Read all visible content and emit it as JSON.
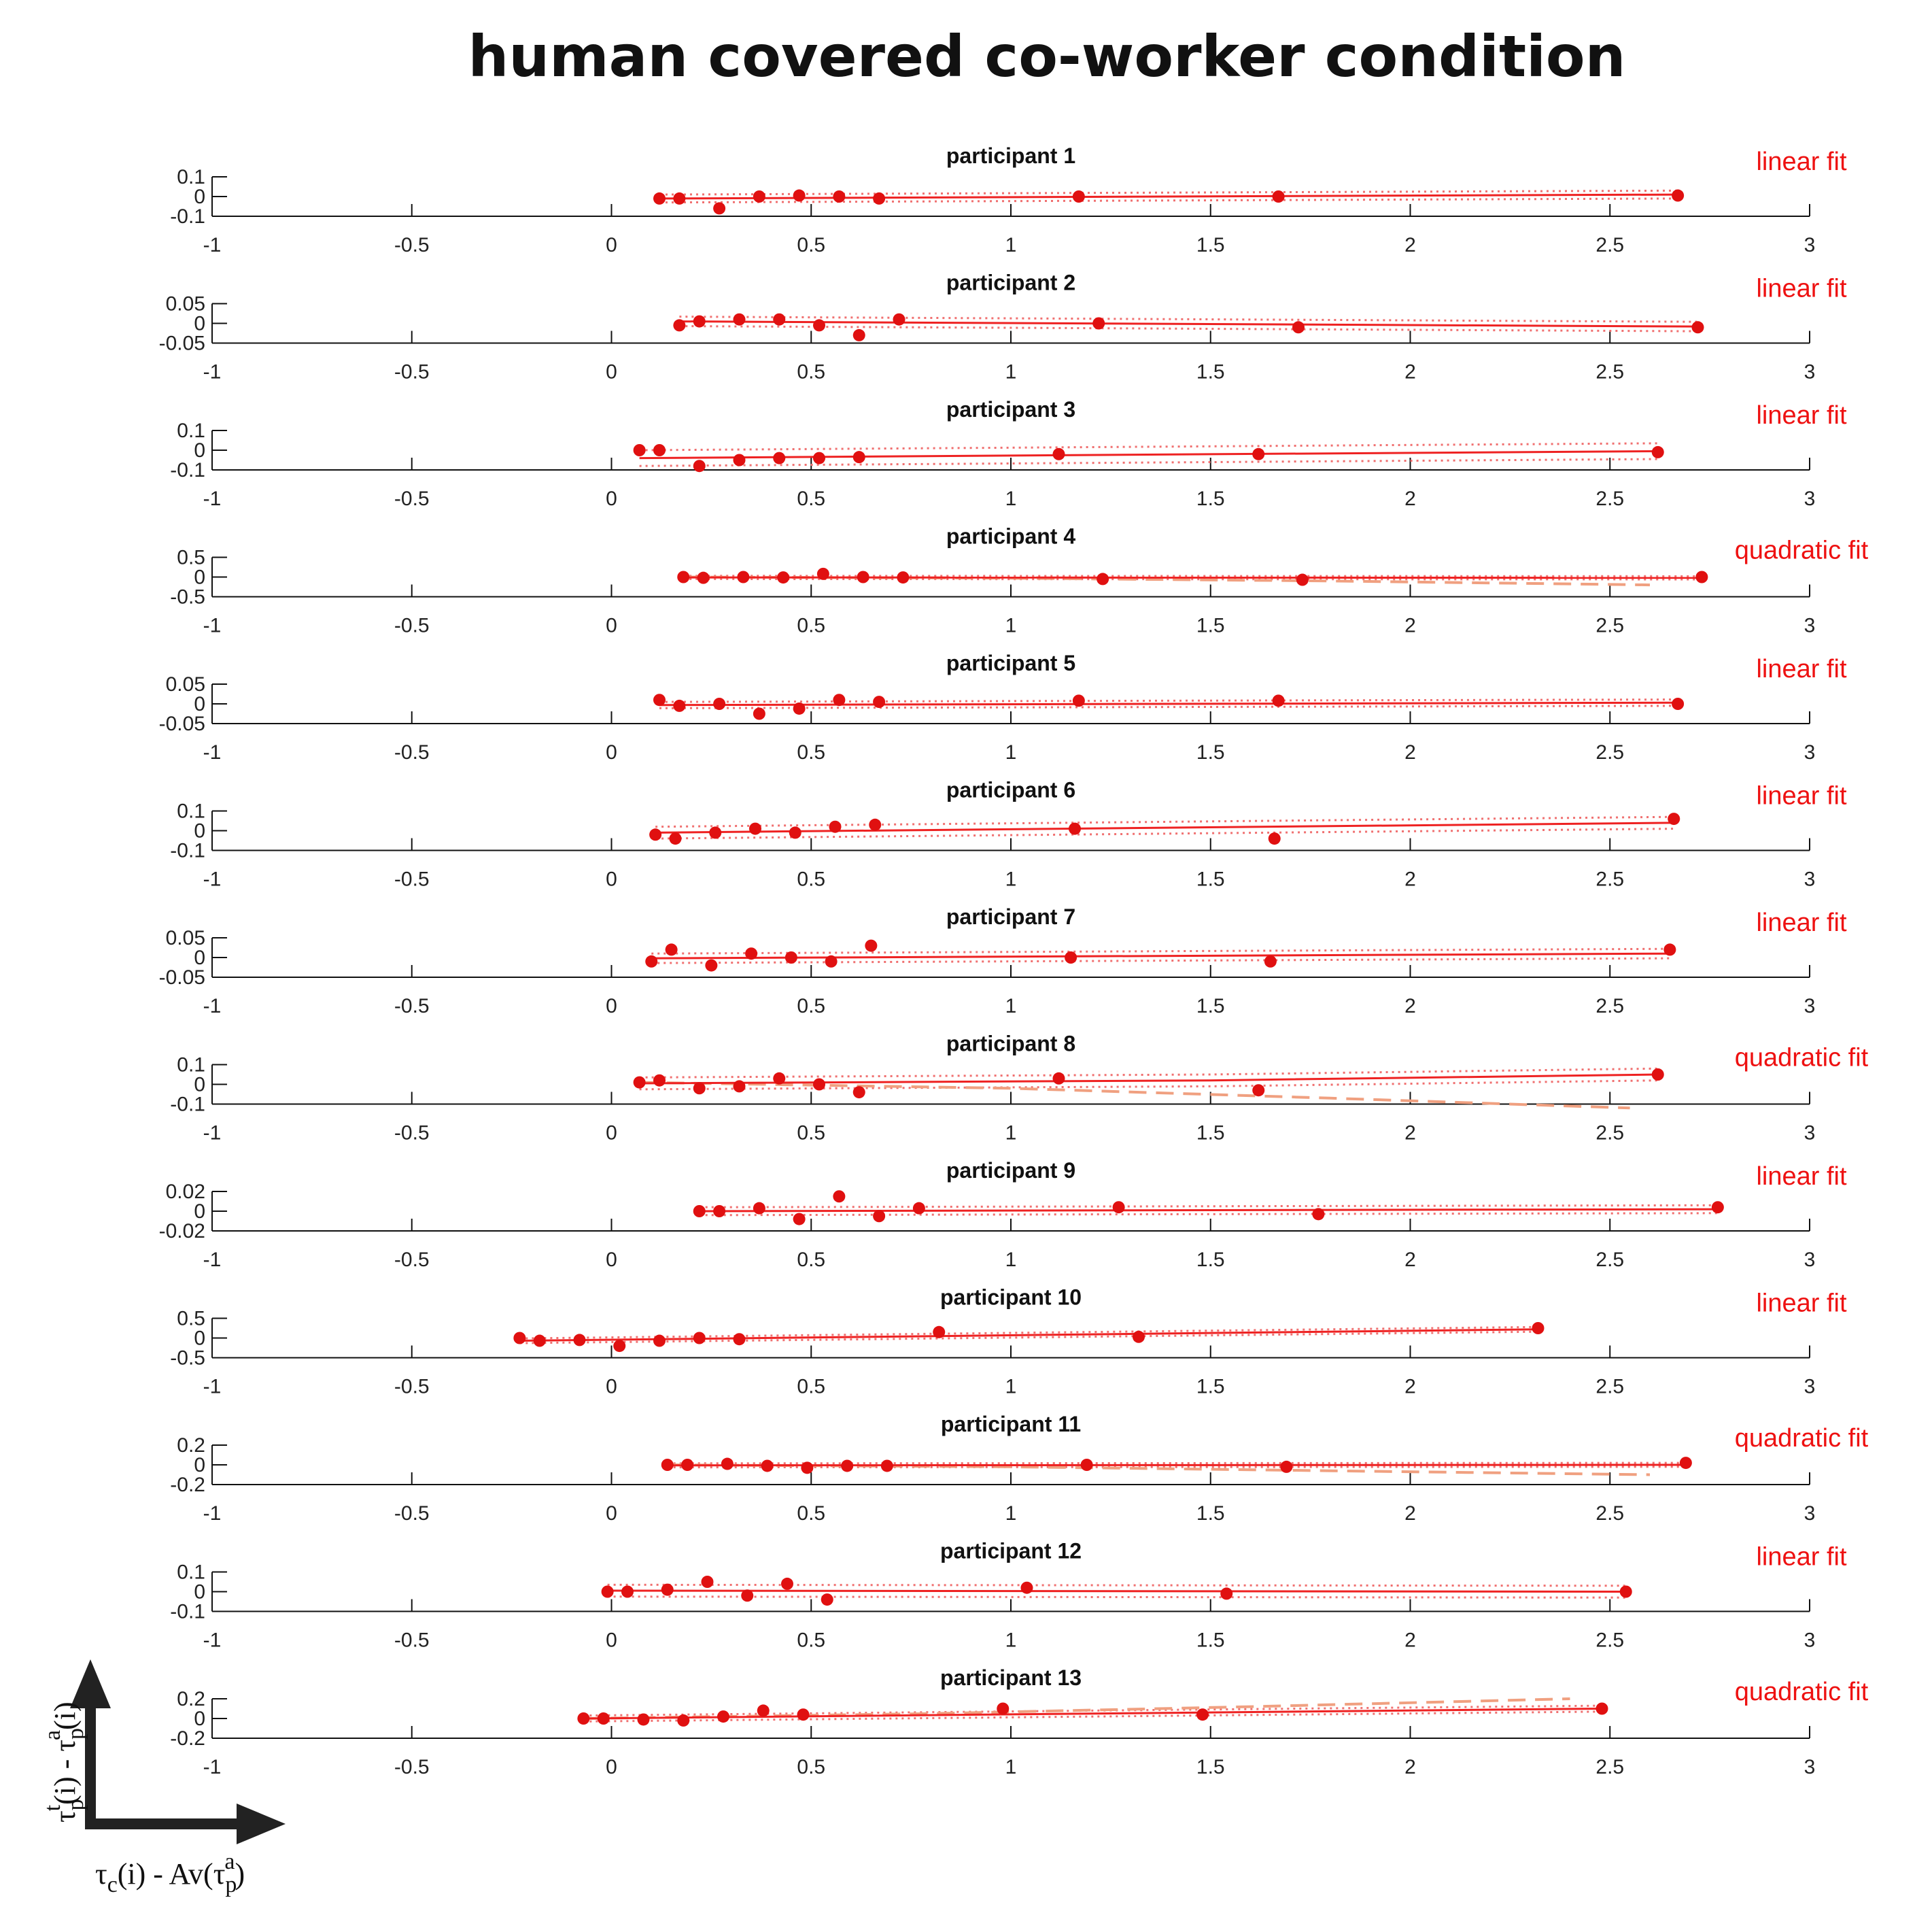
{
  "title": "human covered co-worker condition",
  "x_axis_label": "τc(i) - Av(τpa)",
  "y_axis_label": "τpt(i) - τpa(i)",
  "x_axis_label_parts": {
    "base1": "τ",
    "sub1": "c",
    "mid": "(i) - Av(",
    "base2": "τ",
    "sub2": "p",
    "sup2": "a",
    "end": ")"
  },
  "y_axis_label_parts": {
    "base1": "τ",
    "sub1": "p",
    "sup1": "t",
    "mid": "(i) - ",
    "base2": "τ",
    "sub2": "p",
    "sup2": "a",
    "end": "(i)"
  },
  "colors": {
    "points": "#e01010",
    "fit": "#ee2222",
    "ci": "#f07070",
    "quadratic": "#f0a080",
    "axis": "#111111"
  },
  "chart_data": [
    {
      "type": "scatter",
      "title": "participant 1",
      "fit": "linear fit",
      "xlim": [
        -1,
        3
      ],
      "x_ticks": [
        "-1",
        "-0.5",
        "0",
        "0.5",
        "1",
        "1.5",
        "2",
        "2.5",
        "3"
      ],
      "ylim": [
        -0.1,
        0.1
      ],
      "y_ticks": [
        "0.1",
        "0",
        "-0.1"
      ],
      "x": [
        0.12,
        0.17,
        0.27,
        0.37,
        0.47,
        0.57,
        0.67,
        1.17,
        1.67,
        2.67
      ],
      "y": [
        -0.01,
        -0.01,
        -0.06,
        0.0,
        0.005,
        0.0,
        -0.01,
        0.0,
        0.0,
        0.005
      ],
      "fit_line": [
        [
          0.12,
          -0.01
        ],
        [
          2.67,
          0.01
        ]
      ],
      "ci_half": 0.02
    },
    {
      "type": "scatter",
      "title": "participant 2",
      "fit": "linear fit",
      "xlim": [
        -1,
        3
      ],
      "x_ticks": [
        "-1",
        "-0.5",
        "0",
        "0.5",
        "1",
        "1.5",
        "2",
        "2.5",
        "3"
      ],
      "ylim": [
        -0.05,
        0.05
      ],
      "y_ticks": [
        "0.05",
        "0",
        "-0.05"
      ],
      "x": [
        0.17,
        0.22,
        0.32,
        0.42,
        0.52,
        0.62,
        0.72,
        1.22,
        1.72,
        2.72
      ],
      "y": [
        -0.005,
        0.005,
        0.01,
        0.01,
        -0.005,
        -0.03,
        0.01,
        0.0,
        -0.01,
        -0.01
      ],
      "fit_line": [
        [
          0.17,
          0.005
        ],
        [
          2.72,
          -0.008
        ]
      ],
      "ci_half": 0.012
    },
    {
      "type": "scatter",
      "title": "participant 3",
      "fit": "linear fit",
      "xlim": [
        -1,
        3
      ],
      "x_ticks": [
        "-1",
        "-0.5",
        "0",
        "0.5",
        "1",
        "1.5",
        "2",
        "2.5",
        "3"
      ],
      "ylim": [
        -0.1,
        0.1
      ],
      "y_ticks": [
        "0.1",
        "0",
        "-0.1"
      ],
      "x": [
        0.07,
        0.12,
        0.22,
        0.32,
        0.42,
        0.52,
        0.62,
        1.12,
        1.62,
        2.62
      ],
      "y": [
        0.0,
        0.0,
        -0.08,
        -0.05,
        -0.04,
        -0.04,
        -0.035,
        -0.02,
        -0.02,
        -0.01
      ],
      "fit_line": [
        [
          0.07,
          -0.04
        ],
        [
          2.62,
          -0.005
        ]
      ],
      "ci_half": 0.04
    },
    {
      "type": "scatter",
      "title": "participant 4",
      "fit": "quadratic fit",
      "xlim": [
        -1,
        3
      ],
      "x_ticks": [
        "-1",
        "-0.5",
        "0",
        "0.5",
        "1",
        "1.5",
        "2",
        "2.5",
        "3"
      ],
      "ylim": [
        -0.5,
        0.5
      ],
      "y_ticks": [
        "0.5",
        "0",
        "-0.5"
      ],
      "x": [
        0.18,
        0.23,
        0.33,
        0.43,
        0.53,
        0.63,
        0.73,
        1.23,
        1.73,
        2.73
      ],
      "y": [
        0.0,
        -0.02,
        0.0,
        -0.01,
        0.08,
        0.0,
        -0.01,
        -0.05,
        -0.07,
        0.0
      ],
      "fit_line": [
        [
          0.18,
          -0.01
        ],
        [
          2.73,
          -0.02
        ]
      ],
      "ci_half": 0.04,
      "quad_line": [
        [
          0.18,
          0.0
        ],
        [
          1.0,
          -0.03
        ],
        [
          1.8,
          -0.1
        ],
        [
          2.6,
          -0.2
        ]
      ]
    },
    {
      "type": "scatter",
      "title": "participant 5",
      "fit": "linear fit",
      "xlim": [
        -1,
        3
      ],
      "x_ticks": [
        "-1",
        "-0.5",
        "0",
        "0.5",
        "1",
        "1.5",
        "2",
        "2.5",
        "3"
      ],
      "ylim": [
        -0.05,
        0.05
      ],
      "y_ticks": [
        "0.05",
        "0",
        "-0.05"
      ],
      "x": [
        0.12,
        0.17,
        0.27,
        0.37,
        0.47,
        0.57,
        0.67,
        1.17,
        1.67,
        2.67
      ],
      "y": [
        0.01,
        -0.005,
        0.0,
        -0.025,
        -0.012,
        0.01,
        0.005,
        0.008,
        0.008,
        0.0
      ],
      "fit_line": [
        [
          0.12,
          -0.003
        ],
        [
          2.67,
          0.003
        ]
      ],
      "ci_half": 0.008
    },
    {
      "type": "scatter",
      "title": "participant 6",
      "fit": "linear fit",
      "xlim": [
        -1,
        3
      ],
      "x_ticks": [
        "-1",
        "-0.5",
        "0",
        "0.5",
        "1",
        "1.5",
        "2",
        "2.5",
        "3"
      ],
      "ylim": [
        -0.1,
        0.1
      ],
      "y_ticks": [
        "0.1",
        "0",
        "-0.1"
      ],
      "x": [
        0.11,
        0.16,
        0.26,
        0.36,
        0.46,
        0.56,
        0.66,
        1.16,
        1.66,
        2.66
      ],
      "y": [
        -0.02,
        -0.04,
        -0.01,
        0.01,
        -0.01,
        0.02,
        0.03,
        0.01,
        -0.04,
        0.06
      ],
      "fit_line": [
        [
          0.11,
          -0.01
        ],
        [
          2.66,
          0.04
        ]
      ],
      "ci_half": 0.03
    },
    {
      "type": "scatter",
      "title": "participant 7",
      "fit": "linear fit",
      "xlim": [
        -1,
        3
      ],
      "x_ticks": [
        "-1",
        "-0.5",
        "0",
        "0.5",
        "1",
        "1.5",
        "2",
        "2.5",
        "3"
      ],
      "ylim": [
        -0.05,
        0.05
      ],
      "y_ticks": [
        "0.05",
        "0",
        "-0.05"
      ],
      "x": [
        0.1,
        0.15,
        0.25,
        0.35,
        0.45,
        0.55,
        0.65,
        1.15,
        1.65,
        2.65
      ],
      "y": [
        -0.01,
        0.02,
        -0.02,
        0.01,
        0.0,
        -0.01,
        0.03,
        0.0,
        -0.01,
        0.02
      ],
      "fit_line": [
        [
          0.1,
          -0.002
        ],
        [
          2.65,
          0.01
        ]
      ],
      "ci_half": 0.012
    },
    {
      "type": "scatter",
      "title": "participant 8",
      "fit": "quadratic fit",
      "xlim": [
        -1,
        3
      ],
      "x_ticks": [
        "-1",
        "-0.5",
        "0",
        "0.5",
        "1",
        "1.5",
        "2",
        "2.5",
        "3"
      ],
      "ylim": [
        -0.1,
        0.1
      ],
      "y_ticks": [
        "0.1",
        "0",
        "-0.1"
      ],
      "x": [
        0.07,
        0.12,
        0.22,
        0.32,
        0.42,
        0.52,
        0.62,
        1.12,
        1.62,
        2.62
      ],
      "y": [
        0.01,
        0.02,
        -0.02,
        -0.01,
        0.03,
        0.0,
        -0.04,
        0.03,
        -0.03,
        0.05
      ],
      "fit_line": [
        [
          0.07,
          0.005
        ],
        [
          1.5,
          0.02
        ],
        [
          2.62,
          0.05
        ]
      ],
      "ci_half": 0.03,
      "quad_line": [
        [
          0.07,
          0.01
        ],
        [
          1.0,
          -0.02
        ],
        [
          1.8,
          -0.07
        ],
        [
          2.55,
          -0.12
        ]
      ]
    },
    {
      "type": "scatter",
      "title": "participant 9",
      "fit": "linear fit",
      "xlim": [
        -1,
        3
      ],
      "x_ticks": [
        "-1",
        "-0.5",
        "0",
        "0.5",
        "1",
        "1.5",
        "2",
        "2.5",
        "3"
      ],
      "ylim": [
        -0.02,
        0.02
      ],
      "y_ticks": [
        "0.02",
        "0",
        "-0.02"
      ],
      "x": [
        0.22,
        0.27,
        0.37,
        0.47,
        0.57,
        0.67,
        0.77,
        1.27,
        1.77,
        2.77
      ],
      "y": [
        0.0,
        0.0,
        0.003,
        -0.008,
        0.015,
        -0.005,
        0.003,
        0.004,
        -0.003,
        0.004
      ],
      "fit_line": [
        [
          0.22,
          0.0
        ],
        [
          2.77,
          0.002
        ]
      ],
      "ci_half": 0.004
    },
    {
      "type": "scatter",
      "title": "participant 10",
      "fit": "linear fit",
      "xlim": [
        -1,
        3
      ],
      "x_ticks": [
        "-1",
        "-0.5",
        "0",
        "0.5",
        "1",
        "1.5",
        "2",
        "2.5",
        "3"
      ],
      "ylim": [
        -0.5,
        0.5
      ],
      "y_ticks": [
        "0.5",
        "0",
        "-0.5"
      ],
      "x": [
        -0.23,
        -0.18,
        -0.08,
        0.02,
        0.12,
        0.22,
        0.32,
        0.82,
        1.32,
        2.32
      ],
      "y": [
        0.0,
        -0.07,
        -0.05,
        -0.2,
        -0.07,
        0.0,
        -0.03,
        0.15,
        0.03,
        0.25
      ],
      "fit_line": [
        [
          -0.23,
          -0.07
        ],
        [
          2.32,
          0.22
        ]
      ],
      "ci_half": 0.06
    },
    {
      "type": "scatter",
      "title": "participant 11",
      "fit": "quadratic fit",
      "xlim": [
        -1,
        3
      ],
      "x_ticks": [
        "-1",
        "-0.5",
        "0",
        "0.5",
        "1",
        "1.5",
        "2",
        "2.5",
        "3"
      ],
      "ylim": [
        -0.2,
        0.2
      ],
      "y_ticks": [
        "0.2",
        "0",
        "-0.2"
      ],
      "x": [
        0.14,
        0.19,
        0.29,
        0.39,
        0.49,
        0.59,
        0.69,
        1.19,
        1.69,
        2.69
      ],
      "y": [
        0.0,
        0.0,
        0.01,
        -0.01,
        -0.03,
        -0.01,
        -0.01,
        0.0,
        -0.02,
        0.02
      ],
      "fit_line": [
        [
          0.14,
          -0.005
        ],
        [
          2.69,
          0.0
        ]
      ],
      "ci_half": 0.02,
      "quad_line": [
        [
          0.14,
          0.0
        ],
        [
          1.0,
          -0.02
        ],
        [
          1.8,
          -0.06
        ],
        [
          2.6,
          -0.1
        ]
      ]
    },
    {
      "type": "scatter",
      "title": "participant 12",
      "fit": "linear fit",
      "xlim": [
        -1,
        3
      ],
      "x_ticks": [
        "-1",
        "-0.5",
        "0",
        "0.5",
        "1",
        "1.5",
        "2",
        "2.5",
        "3"
      ],
      "ylim": [
        -0.1,
        0.1
      ],
      "y_ticks": [
        "0.1",
        "0",
        "-0.1"
      ],
      "x": [
        -0.01,
        0.04,
        0.14,
        0.24,
        0.34,
        0.44,
        0.54,
        1.04,
        1.54,
        2.54
      ],
      "y": [
        0.0,
        0.0,
        0.01,
        0.05,
        -0.02,
        0.04,
        -0.04,
        0.02,
        -0.01,
        0.0
      ],
      "fit_line": [
        [
          -0.01,
          0.005
        ],
        [
          2.54,
          0.0
        ]
      ],
      "ci_half": 0.03
    },
    {
      "type": "scatter",
      "title": "participant 13",
      "fit": "quadratic fit",
      "xlim": [
        -1,
        3
      ],
      "x_ticks": [
        "-1",
        "-0.5",
        "0",
        "0.5",
        "1",
        "1.5",
        "2",
        "2.5",
        "3"
      ],
      "ylim": [
        -0.2,
        0.2
      ],
      "y_ticks": [
        "0.2",
        "0",
        "-0.2"
      ],
      "x": [
        -0.07,
        -0.02,
        0.08,
        0.18,
        0.28,
        0.38,
        0.48,
        0.98,
        1.48,
        2.48
      ],
      "y": [
        0.0,
        0.0,
        -0.01,
        -0.02,
        0.02,
        0.08,
        0.04,
        0.1,
        0.04,
        0.1
      ],
      "fit_line": [
        [
          -0.07,
          0.0
        ],
        [
          2.48,
          0.1
        ]
      ],
      "ci_half": 0.03,
      "quad_line": [
        [
          -0.07,
          0.0
        ],
        [
          0.8,
          0.05
        ],
        [
          1.6,
          0.12
        ],
        [
          2.4,
          0.2
        ]
      ]
    }
  ]
}
